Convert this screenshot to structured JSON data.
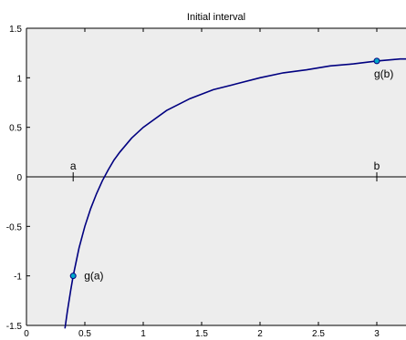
{
  "chart_data": {
    "type": "line",
    "title": "Initial interval",
    "xlabel": "",
    "ylabel": "",
    "xlim": [
      0,
      3.25
    ],
    "ylim": [
      -1.5,
      1.5
    ],
    "xticks": [
      0,
      0.5,
      1,
      1.5,
      2,
      2.5,
      3
    ],
    "xtick_labels": [
      "0",
      "0.5",
      "1",
      "1.5",
      "2",
      "2.5",
      "3"
    ],
    "yticks": [
      -1.5,
      -1,
      -0.5,
      0,
      0.5,
      1,
      1.5
    ],
    "ytick_labels": [
      "-1.5",
      "-1",
      "-0.5",
      "0",
      "0.5",
      "1",
      "1.5"
    ],
    "grid": false,
    "background_color": "#ededed",
    "line_color": "#000080",
    "marker_color": "#00a8c8",
    "series": [
      {
        "x": [
          0.33,
          0.35,
          0.38,
          0.4,
          0.45,
          0.5,
          0.55,
          0.6,
          0.65,
          0.7,
          0.75,
          0.8,
          0.9,
          1.0,
          1.2,
          1.4,
          1.6,
          1.8,
          2.0,
          2.2,
          2.4,
          2.6,
          2.8,
          3.0,
          3.2,
          3.25
        ],
        "values": [
          -1.53,
          -1.36,
          -1.14,
          -1.0,
          -0.72,
          -0.5,
          -0.32,
          -0.17,
          -0.04,
          0.07,
          0.17,
          0.25,
          0.39,
          0.5,
          0.67,
          0.79,
          0.88,
          0.94,
          1.0,
          1.05,
          1.08,
          1.12,
          1.14,
          1.17,
          1.19,
          1.19
        ]
      }
    ],
    "points": [
      {
        "x": 0.4,
        "y": -1.0,
        "label": "g(a)"
      },
      {
        "x": 3.0,
        "y": 1.17,
        "label": "g(b)"
      }
    ],
    "axis_markers": [
      {
        "x": 0.4,
        "label": "a"
      },
      {
        "x": 3.0,
        "label": "b"
      }
    ]
  }
}
